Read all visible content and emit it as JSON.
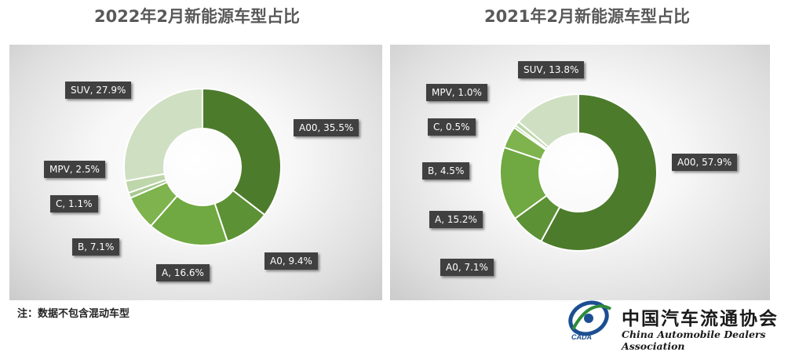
{
  "chart_data": [
    {
      "type": "pie",
      "title": "2022年2月新能源车型占比",
      "hole": true,
      "categories": [
        "A00",
        "A0",
        "A",
        "B",
        "C",
        "MPV",
        "SUV"
      ],
      "values": [
        35.5,
        9.4,
        16.6,
        7.1,
        1.1,
        2.5,
        27.9
      ],
      "labels": [
        "A00, 35.5%",
        "A0, 9.4%",
        "A, 16.6%",
        "B, 7.1%",
        "C, 1.1%",
        "MPV, 2.5%",
        "SUV, 27.9%"
      ],
      "colors": [
        "#4d7b2c",
        "#5c9135",
        "#70a841",
        "#7eb34e",
        "#a8c98e",
        "#bdd6aa",
        "#cfe0c2"
      ]
    },
    {
      "type": "pie",
      "title": "2021年2月新能源车型占比",
      "hole": true,
      "categories": [
        "A00",
        "A0",
        "A",
        "B",
        "C",
        "MPV",
        "SUV"
      ],
      "values": [
        57.9,
        7.1,
        15.2,
        4.5,
        0.5,
        1.0,
        13.8
      ],
      "labels": [
        "A00, 57.9%",
        "A0, 7.1%",
        "A, 15.2%",
        "B, 4.5%",
        "C, 0.5%",
        "MPV, 1.0%",
        "SUV, 13.8%"
      ],
      "colors": [
        "#4d7b2c",
        "#5c9135",
        "#70a841",
        "#7eb34e",
        "#a8c98e",
        "#bdd6aa",
        "#cfe0c2"
      ]
    }
  ],
  "footnote": "注：数据不包含混动车型",
  "logo": {
    "name_cn": "中国汽车流通协会",
    "name_en": "China Automobile Dealers Association",
    "abbr": "CADA"
  }
}
